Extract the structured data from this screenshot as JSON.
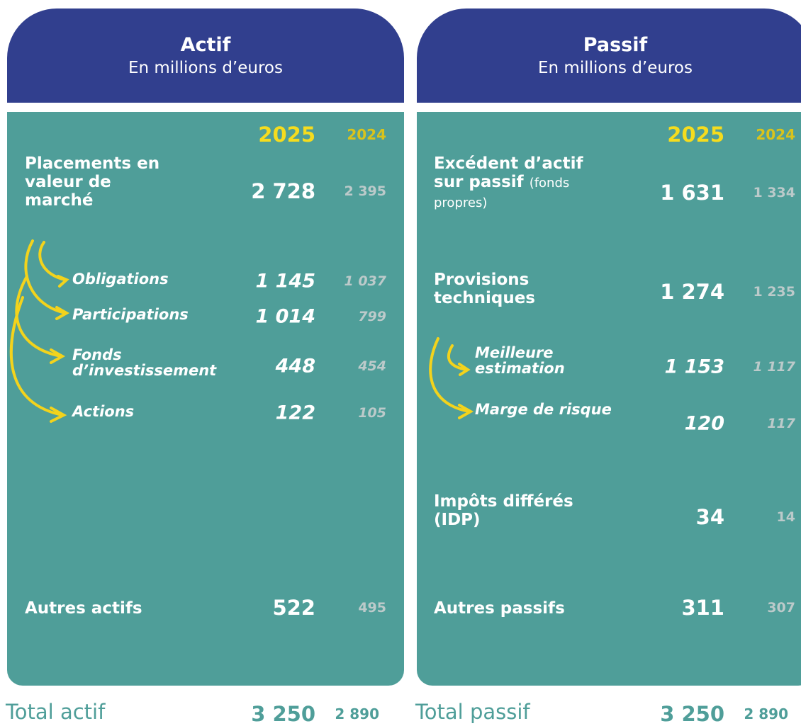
{
  "actif": {
    "title": "Actif",
    "subtitle": "En millions d’euros",
    "years": [
      "2025",
      "2024"
    ],
    "rows": [
      {
        "label": "Placements en valeur de marché",
        "values": [
          "2 728",
          "2 395"
        ],
        "details": [
          {
            "label": "Obligations",
            "values": [
              "1 145",
              "1 037"
            ]
          },
          {
            "label": "Participations",
            "values": [
              "1 014",
              "799"
            ]
          },
          {
            "label": "Fonds d’investissement",
            "values": [
              "448",
              "454"
            ]
          },
          {
            "label": "Actions",
            "values": [
              "122",
              "105"
            ]
          }
        ]
      },
      {
        "label": "Autres actifs",
        "values": [
          "522",
          "495"
        ]
      }
    ],
    "total": {
      "label": "Total actif",
      "values": [
        "3 250",
        "2 890"
      ]
    }
  },
  "passif": {
    "title": "Passif",
    "subtitle": "En millions d’euros",
    "years": [
      "2025",
      "2024"
    ],
    "rows": [
      {
        "label": "Excédent d’actif sur passif",
        "note": "(fonds propres)",
        "values": [
          "1 631",
          "1 334"
        ]
      },
      {
        "label": "Provisions techniques",
        "values": [
          "1 274",
          "1 235"
        ],
        "details": [
          {
            "label": "Meilleure estimation",
            "values": [
              "1 153",
              "1 117"
            ]
          },
          {
            "label": "Marge de risque",
            "values": [
              "120",
              "117"
            ]
          }
        ]
      },
      {
        "label": "Impôts différés (IDP)",
        "values": [
          "34",
          "14"
        ]
      },
      {
        "label": "Autres passifs",
        "values": [
          "311",
          "307"
        ]
      }
    ],
    "total": {
      "label": "Total passif",
      "values": [
        "3 250",
        "2 890"
      ]
    }
  }
}
